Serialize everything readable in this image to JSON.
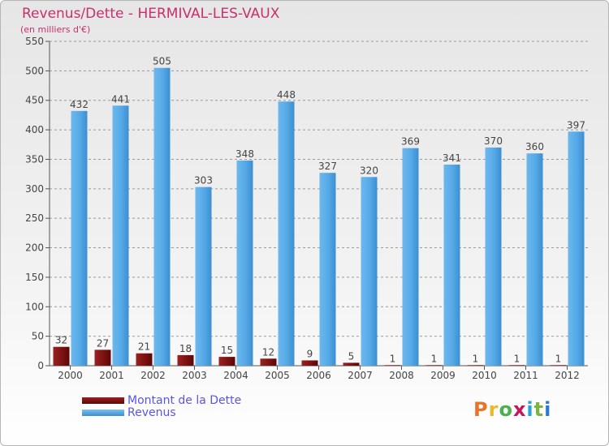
{
  "header": {
    "title": "Revenus/Dette - HERMIVAL-LES-VAUX",
    "subtitle": "(en milliers d'€)"
  },
  "legend": {
    "debt_label": "Montant de la Dette",
    "revenue_label": "Revenus"
  },
  "logo": {
    "text": "Proxiti",
    "colors": [
      "#e8742a",
      "#e8b92a",
      "#4caf50",
      "#c2185b",
      "#29a3d6",
      "#7cb342",
      "#2979d6"
    ]
  },
  "colors": {
    "debt": "#7a1010",
    "revenue": "#56a9e6",
    "revenue_dark": "#3b8fd1",
    "grid": "#9a9a9a",
    "text": "#444444"
  },
  "chart_data": {
    "type": "bar",
    "title": "Revenus/Dette - HERMIVAL-LES-VAUX",
    "subtitle": "(en milliers d'€)",
    "categories": [
      "2000",
      "2001",
      "2002",
      "2003",
      "2004",
      "2005",
      "2006",
      "2007",
      "2008",
      "2009",
      "2010",
      "2011",
      "2012"
    ],
    "series": [
      {
        "name": "Montant de la Dette",
        "values": [
          32,
          27,
          21,
          18,
          15,
          12,
          9,
          5,
          1,
          1,
          1,
          1,
          1
        ]
      },
      {
        "name": "Revenus",
        "values": [
          432,
          441,
          505,
          303,
          348,
          448,
          327,
          320,
          369,
          341,
          370,
          360,
          397
        ]
      }
    ],
    "ylim": [
      0,
      550
    ],
    "yticks": [
      0,
      50,
      100,
      150,
      200,
      250,
      300,
      350,
      400,
      450,
      500,
      550
    ],
    "grid": true,
    "legend_position": "bottom-left"
  }
}
